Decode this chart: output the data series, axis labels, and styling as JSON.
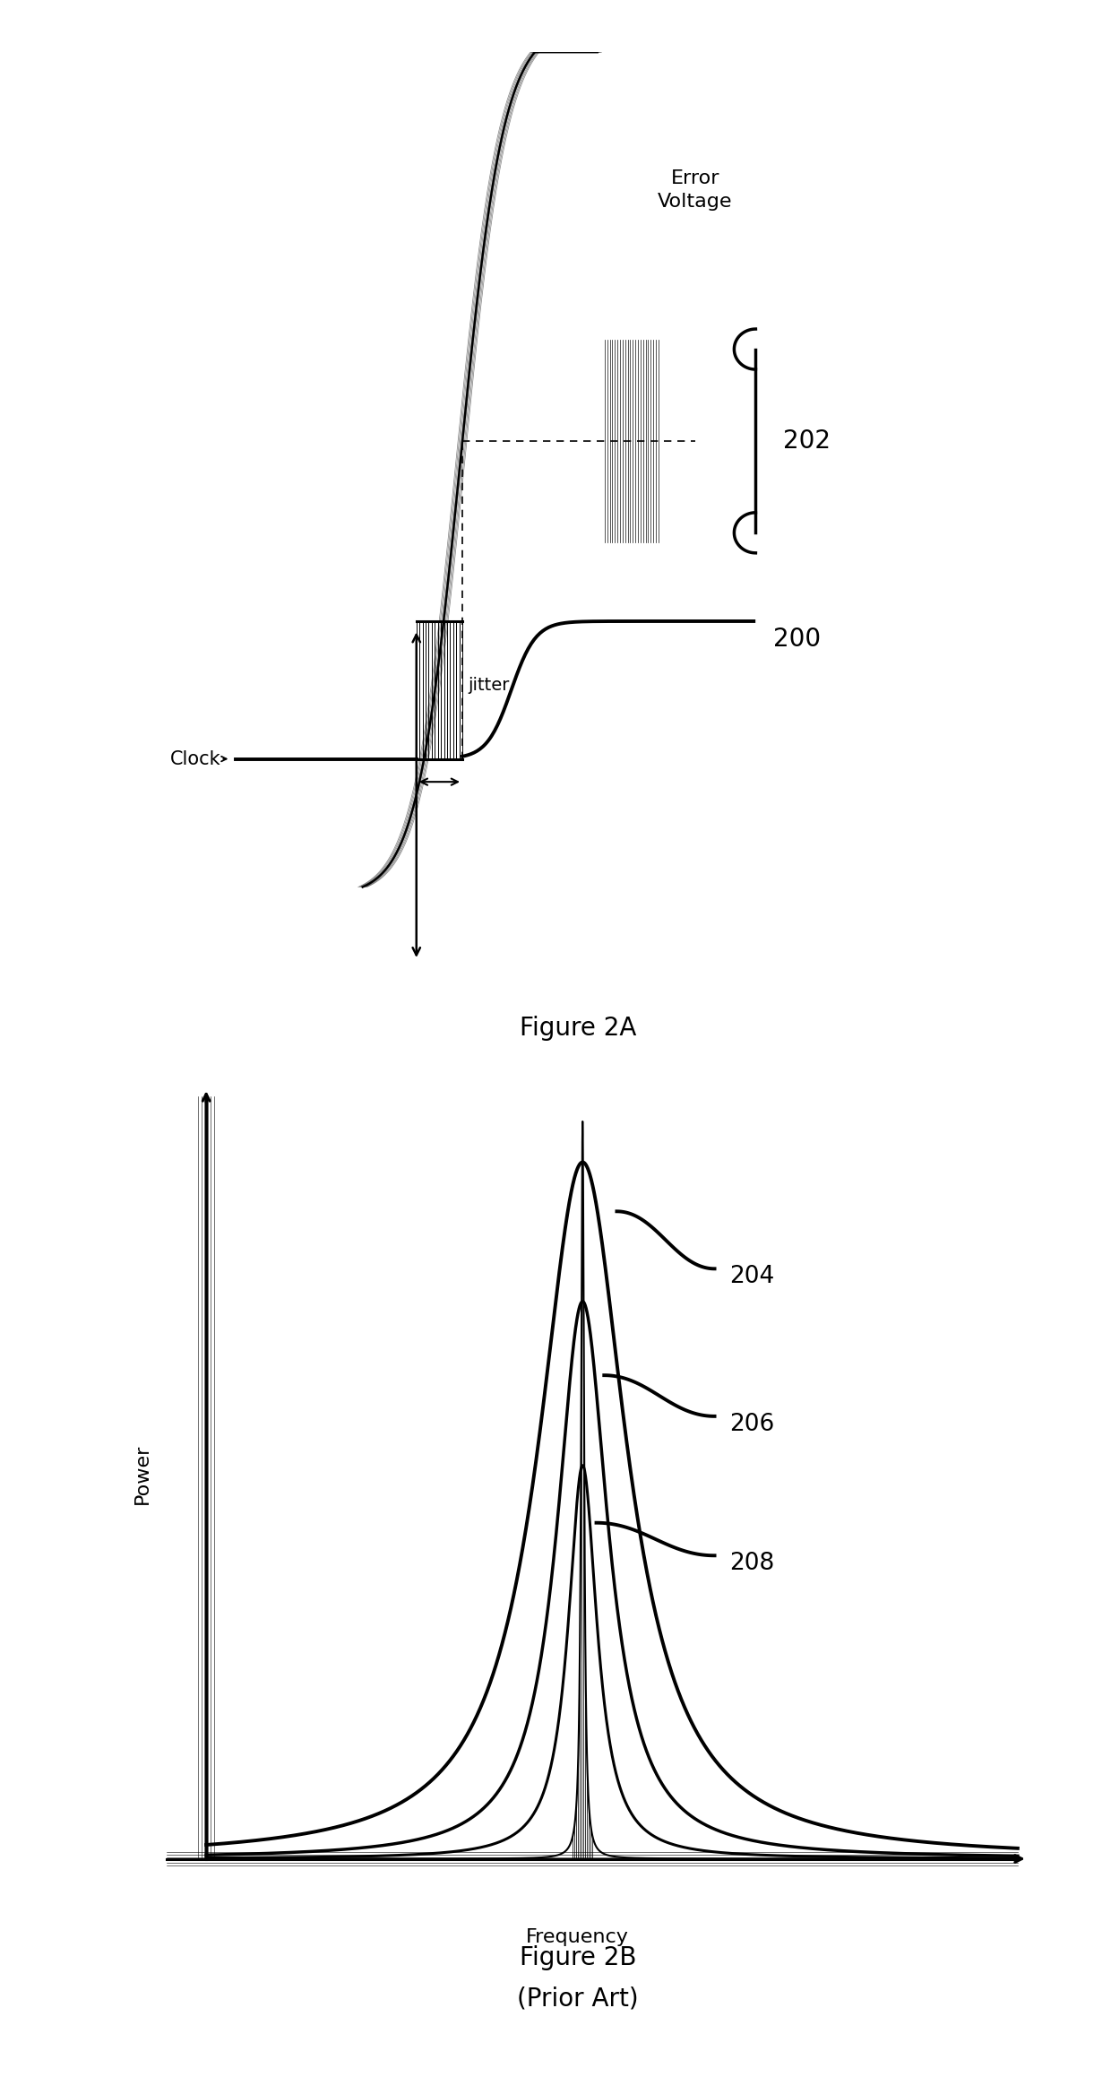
{
  "fig2a_title": "Figure 2A",
  "fig2b_title": "Figure 2B",
  "fig2b_subtitle": "(Prior Art)",
  "label_200": "200",
  "label_202": "202",
  "label_204": "204",
  "label_206": "206",
  "label_208": "208",
  "label_clock": "Clock",
  "label_jitter": "jitter",
  "label_error_voltage": "Error\nVoltage",
  "label_power": "Power",
  "label_frequency": "Frequency",
  "bg_color": "#ffffff",
  "line_color": "#000000",
  "fig_width": 12.4,
  "fig_height": 23.27
}
